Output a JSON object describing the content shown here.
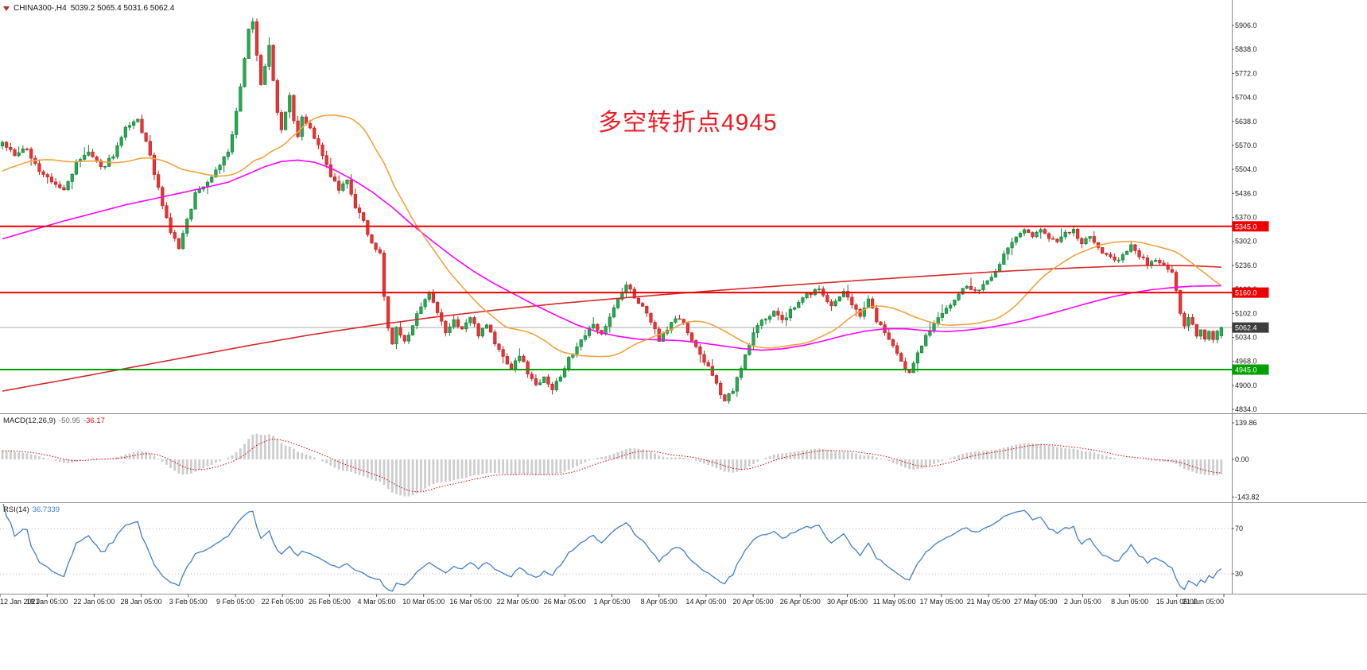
{
  "header": {
    "symbol": "CHINA300-,H4",
    "ohlc": "5039.2 5065.4 5031.6 5062.4"
  },
  "annotation": {
    "text": "多空转折点4945"
  },
  "macd_panel": {
    "label": "MACD(12,26,9)",
    "main_value": "-50.95",
    "signal_value": "-36.17"
  },
  "rsi_panel": {
    "label": "RSI(14)",
    "value": "36.7339"
  },
  "colors": {
    "background": "#ffffff",
    "bull": "#2aa84f",
    "bull_border": "#0f7f39",
    "bear": "#e93434",
    "bear_border": "#bf1d1d",
    "ma_fast": "#f2a33c",
    "ma_medium": "#ff00ff",
    "ma_slow": "#d62a2a",
    "hline_red": "#ee0000",
    "hline_green": "#00a100",
    "current_price_bg": "#3d3d3d",
    "macd_histogram": "#cdcdcd",
    "macd_signal": "#e00000",
    "rsi_line": "#3f7fca",
    "level_line": "#bbbbbb",
    "axis_text": "#1a1a1a",
    "separator": "#8c8c8c",
    "annotation_red": "#ea1c24"
  },
  "chart_data": {
    "type": "candlestick",
    "symbol": "CHINA300-",
    "timeframe": "H4",
    "title": "CHINA300-,H4 5039.2 5065.4 5031.6 5062.4",
    "annotation": "多空转折点4945",
    "last_candle": {
      "open": 5039.2,
      "high": 5065.4,
      "low": 5031.6,
      "close": 5062.4
    },
    "price_axis_ticks": [
      "5906.0",
      "5838.0",
      "5772.0",
      "5704.0",
      "5638.0",
      "5570.0",
      "5504.0",
      "5436.0",
      "5370.0",
      "5302.0",
      "5236.0",
      "5168.0",
      "5102.0",
      "5034.0",
      "4968.0",
      "4900.0",
      "4834.0"
    ],
    "horizontal_lines": [
      {
        "price": 5345.0,
        "label": "5345.0",
        "color": "#ee0000",
        "type": "resistance"
      },
      {
        "price": 5160.0,
        "label": "5160.0",
        "color": "#ee0000",
        "type": "support-resistance"
      },
      {
        "price": 4945.0,
        "label": "4945.0",
        "color": "#00a100",
        "type": "support"
      }
    ],
    "current_price": {
      "value": 5062.4,
      "label": "5062.4"
    },
    "time_labels": [
      "12 Jan 2021",
      "18 Jan 05:00",
      "22 Jan 05:00",
      "28 Jan 05:00",
      "3 Feb 05:00",
      "9 Feb 05:00",
      "22 Feb 05:00",
      "26 Feb 05:00",
      "4 Mar 05:00",
      "10 Mar 05:00",
      "16 Mar 05:00",
      "22 Mar 05:00",
      "26 Mar 05:00",
      "1 Apr 05:00",
      "8 Apr 05:00",
      "14 Apr 05:00",
      "20 Apr 05:00",
      "26 Apr 05:00",
      "30 Apr 05:00",
      "11 May 05:00",
      "17 May 05:00",
      "21 May 05:00",
      "27 May 05:00",
      "2 Jun 05:00",
      "8 Jun 05:00",
      "15 Jun 05:00",
      "21 Jun 05:00"
    ],
    "candles": {
      "count": 298,
      "seed": 9,
      "noise": 14,
      "wick": 11,
      "prehistory": {
        "bars": 36,
        "start": 5380
      },
      "close_waypoints": [
        [
          0,
          5580
        ],
        [
          3,
          5545
        ],
        [
          6,
          5560
        ],
        [
          9,
          5500
        ],
        [
          12,
          5468
        ],
        [
          15,
          5445
        ],
        [
          18,
          5520
        ],
        [
          21,
          5552
        ],
        [
          24,
          5506
        ],
        [
          27,
          5545
        ],
        [
          30,
          5615
        ],
        [
          33,
          5640
        ],
        [
          35,
          5580
        ],
        [
          37,
          5495
        ],
        [
          39,
          5400
        ],
        [
          41,
          5330
        ],
        [
          43,
          5285
        ],
        [
          45,
          5360
        ],
        [
          47,
          5438
        ],
        [
          50,
          5468
        ],
        [
          53,
          5520
        ],
        [
          55,
          5550
        ],
        [
          56,
          5600
        ],
        [
          57,
          5660
        ],
        [
          58,
          5730
        ],
        [
          59,
          5820
        ],
        [
          60,
          5900
        ],
        [
          61,
          5915
        ],
        [
          62,
          5820
        ],
        [
          63,
          5745
        ],
        [
          64,
          5795
        ],
        [
          65,
          5845
        ],
        [
          66,
          5750
        ],
        [
          67,
          5670
        ],
        [
          68,
          5615
        ],
        [
          69,
          5670
        ],
        [
          70,
          5715
        ],
        [
          71,
          5645
        ],
        [
          72,
          5600
        ],
        [
          73,
          5655
        ],
        [
          74,
          5635
        ],
        [
          76,
          5595
        ],
        [
          78,
          5540
        ],
        [
          80,
          5485
        ],
        [
          82,
          5445
        ],
        [
          84,
          5470
        ],
        [
          86,
          5400
        ],
        [
          88,
          5355
        ],
        [
          90,
          5300
        ],
        [
          92,
          5265
        ],
        [
          93,
          5150
        ],
        [
          94,
          5062
        ],
        [
          95,
          5012
        ],
        [
          96,
          5060
        ],
        [
          98,
          5020
        ],
        [
          100,
          5075
        ],
        [
          102,
          5115
        ],
        [
          104,
          5155
        ],
        [
          106,
          5100
        ],
        [
          108,
          5050
        ],
        [
          110,
          5080
        ],
        [
          112,
          5060
        ],
        [
          114,
          5090
        ],
        [
          116,
          5045
        ],
        [
          118,
          5075
        ],
        [
          120,
          5018
        ],
        [
          122,
          4980
        ],
        [
          124,
          4950
        ],
        [
          126,
          4985
        ],
        [
          128,
          4938
        ],
        [
          130,
          4900
        ],
        [
          132,
          4930
        ],
        [
          134,
          4888
        ],
        [
          136,
          4925
        ],
        [
          138,
          4980
        ],
        [
          140,
          5005
        ],
        [
          142,
          5040
        ],
        [
          144,
          5070
        ],
        [
          146,
          5050
        ],
        [
          148,
          5090
        ],
        [
          150,
          5140
        ],
        [
          152,
          5180
        ],
        [
          154,
          5150
        ],
        [
          156,
          5115
        ],
        [
          158,
          5080
        ],
        [
          160,
          5030
        ],
        [
          162,
          5060
        ],
        [
          164,
          5090
        ],
        [
          166,
          5075
        ],
        [
          168,
          5020
        ],
        [
          170,
          4990
        ],
        [
          172,
          4948
        ],
        [
          174,
          4900
        ],
        [
          176,
          4862
        ],
        [
          178,
          4890
        ],
        [
          180,
          4945
        ],
        [
          182,
          5020
        ],
        [
          184,
          5065
        ],
        [
          186,
          5090
        ],
        [
          188,
          5110
        ],
        [
          190,
          5080
        ],
        [
          193,
          5120
        ],
        [
          196,
          5155
        ],
        [
          199,
          5170
        ],
        [
          202,
          5120
        ],
        [
          205,
          5158
        ],
        [
          207,
          5130
        ],
        [
          209,
          5100
        ],
        [
          211,
          5140
        ],
        [
          213,
          5085
        ],
        [
          215,
          5050
        ],
        [
          217,
          5005
        ],
        [
          219,
          4962
        ],
        [
          221,
          4932
        ],
        [
          223,
          4995
        ],
        [
          225,
          5040
        ],
        [
          227,
          5070
        ],
        [
          229,
          5100
        ],
        [
          231,
          5125
        ],
        [
          233,
          5160
        ],
        [
          235,
          5180
        ],
        [
          237,
          5160
        ],
        [
          239,
          5185
        ],
        [
          241,
          5205
        ],
        [
          243,
          5245
        ],
        [
          245,
          5285
        ],
        [
          247,
          5315
        ],
        [
          249,
          5332
        ],
        [
          251,
          5320
        ],
        [
          253,
          5340
        ],
        [
          255,
          5310
        ],
        [
          257,
          5300
        ],
        [
          259,
          5322
        ],
        [
          261,
          5332
        ],
        [
          263,
          5300
        ],
        [
          265,
          5312
        ],
        [
          267,
          5290
        ],
        [
          269,
          5262
        ],
        [
          271,
          5250
        ],
        [
          273,
          5265
        ],
        [
          275,
          5295
        ],
        [
          277,
          5260
        ],
        [
          279,
          5240
        ],
        [
          281,
          5256
        ],
        [
          283,
          5236
        ],
        [
          285,
          5220
        ],
        [
          286,
          5160
        ],
        [
          287,
          5100
        ],
        [
          288,
          5062
        ],
        [
          289,
          5090
        ],
        [
          290,
          5068
        ],
        [
          291,
          5040
        ],
        [
          292,
          5058
        ],
        [
          293,
          5030
        ],
        [
          294,
          5055
        ],
        [
          295,
          5035
        ],
        [
          296,
          5046
        ],
        [
          297,
          5062.4
        ]
      ]
    },
    "moving_averages": {
      "fast": {
        "color": "#f2a33c",
        "period": 30
      },
      "medium": {
        "color": "#ff00ff",
        "waypoints": [
          [
            0,
            5310
          ],
          [
            15,
            5360
          ],
          [
            30,
            5405
          ],
          [
            45,
            5442
          ],
          [
            55,
            5468
          ],
          [
            60,
            5492
          ],
          [
            64,
            5512
          ],
          [
            68,
            5526
          ],
          [
            72,
            5530
          ],
          [
            76,
            5524
          ],
          [
            80,
            5508
          ],
          [
            85,
            5478
          ],
          [
            90,
            5442
          ],
          [
            95,
            5398
          ],
          [
            100,
            5348
          ],
          [
            105,
            5302
          ],
          [
            110,
            5258
          ],
          [
            115,
            5218
          ],
          [
            120,
            5184
          ],
          [
            125,
            5154
          ],
          [
            130,
            5124
          ],
          [
            135,
            5096
          ],
          [
            140,
            5070
          ],
          [
            145,
            5050
          ],
          [
            150,
            5038
          ],
          [
            155,
            5030
          ],
          [
            160,
            5028
          ],
          [
            165,
            5026
          ],
          [
            170,
            5020
          ],
          [
            175,
            5012
          ],
          [
            180,
            5004
          ],
          [
            185,
            4999
          ],
          [
            190,
            5003
          ],
          [
            195,
            5012
          ],
          [
            200,
            5025
          ],
          [
            205,
            5040
          ],
          [
            210,
            5052
          ],
          [
            215,
            5059
          ],
          [
            220,
            5059
          ],
          [
            225,
            5054
          ],
          [
            230,
            5051
          ],
          [
            235,
            5055
          ],
          [
            240,
            5062
          ],
          [
            245,
            5072
          ],
          [
            250,
            5085
          ],
          [
            255,
            5100
          ],
          [
            260,
            5116
          ],
          [
            265,
            5132
          ],
          [
            270,
            5147
          ],
          [
            275,
            5159
          ],
          [
            280,
            5168
          ],
          [
            285,
            5174
          ],
          [
            290,
            5178
          ],
          [
            297,
            5179
          ]
        ]
      },
      "slow": {
        "color": "#d62a2a",
        "waypoints": [
          [
            0,
            4885
          ],
          [
            15,
            4916
          ],
          [
            30,
            4948
          ],
          [
            45,
            4980
          ],
          [
            60,
            5012
          ],
          [
            75,
            5042
          ],
          [
            90,
            5068
          ],
          [
            105,
            5091
          ],
          [
            120,
            5111
          ],
          [
            135,
            5129
          ],
          [
            150,
            5144
          ],
          [
            165,
            5158
          ],
          [
            180,
            5171
          ],
          [
            195,
            5183
          ],
          [
            210,
            5195
          ],
          [
            225,
            5206
          ],
          [
            240,
            5217
          ],
          [
            255,
            5226
          ],
          [
            270,
            5233
          ],
          [
            280,
            5236
          ],
          [
            290,
            5235
          ],
          [
            297,
            5231
          ]
        ]
      }
    },
    "macd": {
      "label": "MACD(12,26,9)",
      "fast": 12,
      "slow": 26,
      "signal": 9,
      "main_value": -50.95,
      "signal_value": -36.17,
      "axis_ticks": [
        "139.86",
        "0.00",
        "-143.82"
      ]
    },
    "rsi": {
      "label": "RSI(14)",
      "period": 14,
      "value": 36.7339,
      "levels": [
        70,
        30
      ]
    }
  }
}
